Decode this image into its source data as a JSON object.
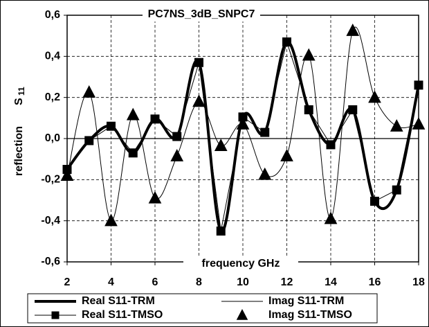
{
  "chart_data": {
    "type": "line",
    "title": "PC7NS_3dB_SNPC7",
    "x_label": "frequency   GHz",
    "y_label": "reflection",
    "y_symbol": "S",
    "y_subscript": "11",
    "x": [
      2,
      3,
      4,
      5,
      6,
      7,
      8,
      9,
      10,
      11,
      12,
      13,
      14,
      15,
      16,
      17,
      18
    ],
    "series": [
      {
        "name": "Real S11-TRM",
        "color": "#000000",
        "line_width": 4,
        "marker": "none",
        "smooth": true,
        "values": [
          -0.15,
          -0.01,
          0.06,
          -0.07,
          0.095,
          0.01,
          0.37,
          -0.45,
          0.105,
          0.03,
          0.47,
          0.14,
          -0.03,
          0.14,
          -0.305,
          -0.25,
          0.26
        ]
      },
      {
        "name": "Imag S11-TRM",
        "color": "#000000",
        "line_width": 1,
        "marker": "none",
        "smooth": true,
        "values": [
          -0.18,
          0.225,
          -0.4,
          0.115,
          -0.29,
          -0.085,
          0.18,
          -0.035,
          0.07,
          -0.175,
          -0.085,
          0.405,
          -0.39,
          0.525,
          0.2,
          0.06,
          0.07
        ]
      },
      {
        "name": "Real S11-TMSO",
        "color": "#000000",
        "line_width": 1,
        "marker": "square",
        "smooth": false,
        "values": [
          -0.15,
          -0.01,
          0.06,
          -0.07,
          0.095,
          0.01,
          0.37,
          -0.45,
          0.105,
          0.03,
          0.47,
          0.14,
          -0.03,
          0.14,
          -0.305,
          -0.25,
          0.26
        ]
      },
      {
        "name": "Imag S11-TMSO",
        "color": "#000000",
        "line_width": 0,
        "marker": "triangle",
        "smooth": false,
        "values": [
          -0.18,
          0.225,
          -0.4,
          0.115,
          -0.29,
          -0.085,
          0.18,
          -0.035,
          0.07,
          -0.175,
          -0.085,
          0.405,
          -0.39,
          0.525,
          0.2,
          0.06,
          0.07
        ]
      }
    ],
    "xlim": [
      2,
      18
    ],
    "xticks": [
      2,
      4,
      6,
      8,
      10,
      12,
      14,
      16,
      18
    ],
    "ylim": [
      -0.6,
      0.6
    ],
    "yticks": [
      {
        "value": -0.6,
        "label": "-0,6"
      },
      {
        "value": -0.4,
        "label": "-0,4"
      },
      {
        "value": -0.2,
        "label": "-0,2"
      },
      {
        "value": 0,
        "label": "0,0"
      },
      {
        "value": 0.2,
        "label": "0,2"
      },
      {
        "value": 0.4,
        "label": "0,4"
      },
      {
        "value": 0.6,
        "label": "0,6"
      }
    ],
    "grid": true,
    "legend": "bottom"
  }
}
